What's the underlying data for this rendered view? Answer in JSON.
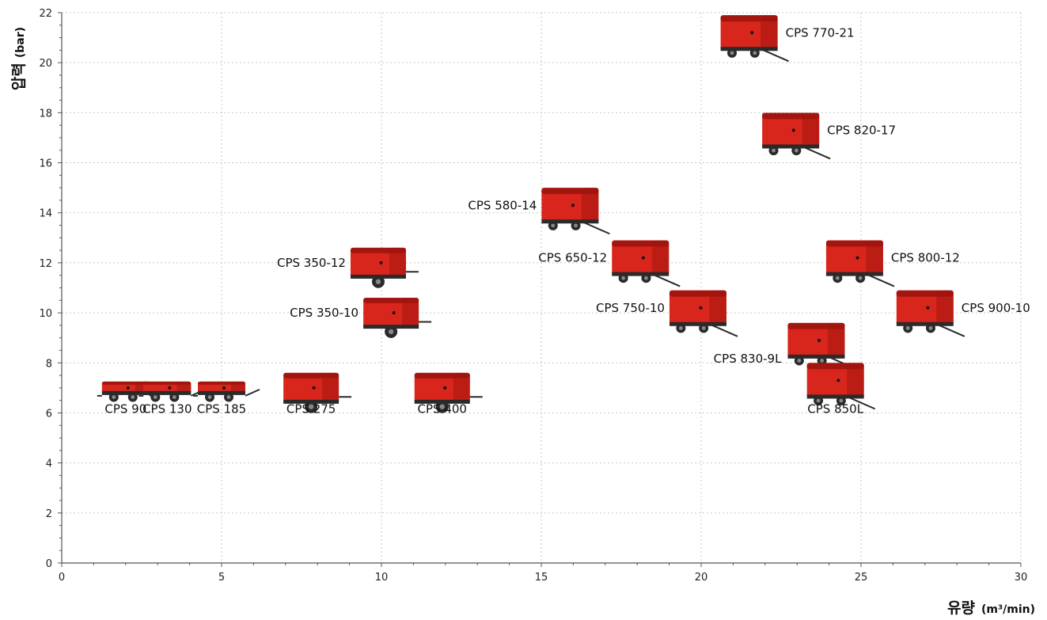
{
  "chart_data": {
    "type": "scatter",
    "xlabel": "유량",
    "xlabel_unit": "(m³/min)",
    "ylabel": "압력",
    "ylabel_unit": "(bar)",
    "xlim": [
      0,
      30
    ],
    "ylim": [
      0,
      22
    ],
    "x_ticks": [
      "0",
      "5",
      "10",
      "15",
      "20",
      "25",
      "30"
    ],
    "y_ticks": [
      "0",
      "2",
      "4",
      "6",
      "8",
      "10",
      "12",
      "14",
      "16",
      "18",
      "20",
      "22"
    ],
    "grid": true,
    "colors": {
      "body": "#d9261c",
      "body_dark": "#a3160f",
      "chassis": "#2a2a2a",
      "grid": "#c8c8c8"
    },
    "points": [
      {
        "label": "CPS 90",
        "x": 2.0,
        "y": 7.0,
        "size": "small",
        "label_pos": "below"
      },
      {
        "label": "CPS 130",
        "x": 3.3,
        "y": 7.0,
        "size": "small",
        "label_pos": "below"
      },
      {
        "label": "CPS 185",
        "x": 5.0,
        "y": 7.0,
        "size": "small",
        "label_pos": "below"
      },
      {
        "label": "CPS 275",
        "x": 7.8,
        "y": 7.0,
        "size": "medium",
        "label_pos": "below"
      },
      {
        "label": "CPS 400",
        "x": 11.9,
        "y": 7.0,
        "size": "medium",
        "label_pos": "below"
      },
      {
        "label": "CPS 350-12",
        "x": 9.9,
        "y": 12.0,
        "size": "medium",
        "label_pos": "left"
      },
      {
        "label": "CPS 350-10",
        "x": 10.3,
        "y": 10.0,
        "size": "medium",
        "label_pos": "left"
      },
      {
        "label": "CPS 580-14",
        "x": 15.9,
        "y": 14.3,
        "size": "large",
        "label_pos": "left"
      },
      {
        "label": "CPS 650-12",
        "x": 18.1,
        "y": 12.2,
        "size": "large",
        "label_pos": "left"
      },
      {
        "label": "CPS 750-10",
        "x": 19.9,
        "y": 10.2,
        "size": "large",
        "label_pos": "left"
      },
      {
        "label": "CPS 770-21",
        "x": 21.5,
        "y": 21.2,
        "size": "large",
        "label_pos": "right"
      },
      {
        "label": "CPS 820-17",
        "x": 22.8,
        "y": 17.3,
        "size": "large",
        "label_pos": "right"
      },
      {
        "label": "CPS 800-12",
        "x": 24.8,
        "y": 12.2,
        "size": "large",
        "label_pos": "right"
      },
      {
        "label": "CPS 900-10",
        "x": 27.0,
        "y": 10.2,
        "size": "large",
        "label_pos": "right"
      },
      {
        "label": "CPS 830-9L",
        "x": 23.6,
        "y": 8.9,
        "size": "large",
        "label_pos": "left-below"
      },
      {
        "label": "CPS 850L",
        "x": 24.2,
        "y": 7.3,
        "size": "large",
        "label_pos": "below"
      }
    ]
  }
}
